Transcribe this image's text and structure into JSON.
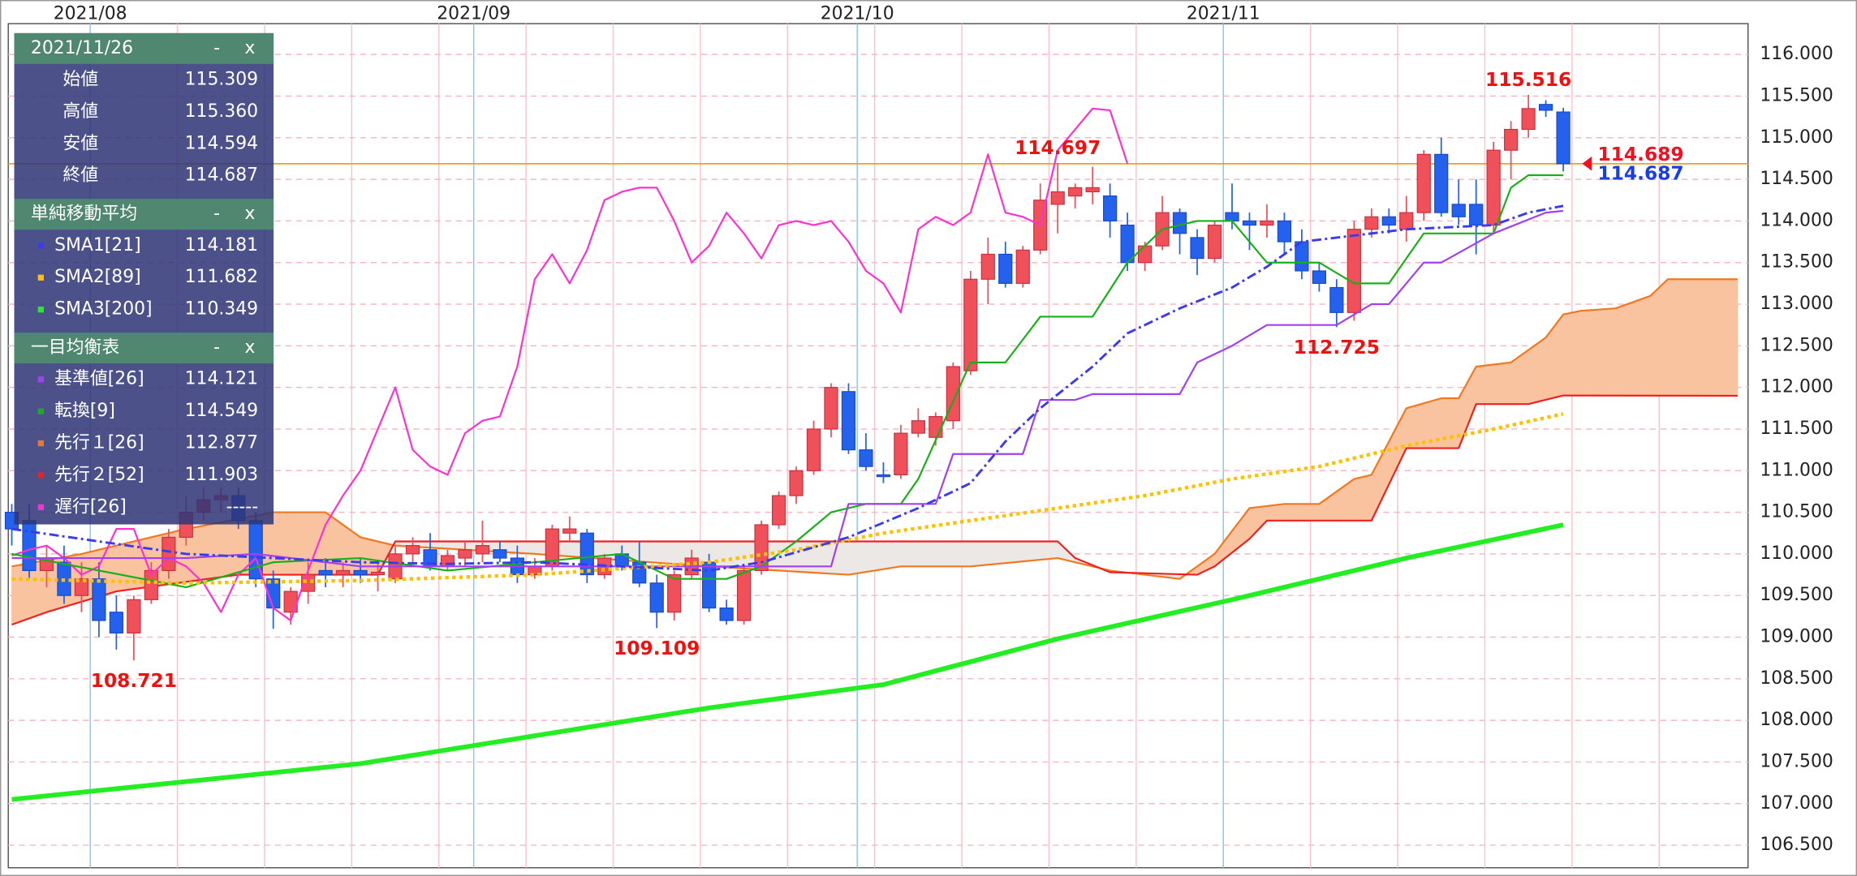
{
  "chart_data": {
    "type": "candlestick",
    "up_color": "#f0505a",
    "down_color": "#2462ee",
    "xlim": [
      -0.2,
      99.6
    ],
    "ylim": [
      106.23,
      116.37
    ],
    "yticks": [
      {
        "value": 106.5,
        "label": "106.500"
      },
      {
        "value": 107,
        "label": "107.000"
      },
      {
        "value": 107.5,
        "label": "107.500"
      },
      {
        "value": 108,
        "label": "108.000"
      },
      {
        "value": 108.5,
        "label": "108.500"
      },
      {
        "value": 109,
        "label": "109.000"
      },
      {
        "value": 109.5,
        "label": "109.500"
      },
      {
        "value": 110,
        "label": "110.000"
      },
      {
        "value": 110.5,
        "label": "110.500"
      },
      {
        "value": 111,
        "label": "111.000"
      },
      {
        "value": 111.5,
        "label": "111.500"
      },
      {
        "value": 112,
        "label": "112.000"
      },
      {
        "value": 112.5,
        "label": "112.500"
      },
      {
        "value": 113,
        "label": "113.000"
      },
      {
        "value": 113.5,
        "label": "113.500"
      },
      {
        "value": 114,
        "label": "114.000"
      },
      {
        "value": 114.5,
        "label": "114.500"
      },
      {
        "value": 115,
        "label": "115.000"
      },
      {
        "value": 115.5,
        "label": "115.500"
      },
      {
        "value": 116,
        "label": "116.000"
      }
    ],
    "xticks": [
      {
        "value": 4.5,
        "label": "2021/08"
      },
      {
        "value": 26.5,
        "label": "2021/09"
      },
      {
        "value": 48.5,
        "label": "2021/10"
      },
      {
        "value": 69.5,
        "label": "2021/11"
      }
    ],
    "xgrid": [
      9.5,
      14.5,
      19.5,
      24.5,
      29.5,
      34.5,
      39.5,
      44.5,
      49.5,
      54.5,
      59.5,
      64.5,
      74.5,
      79.5,
      84.5,
      89.5,
      94.5
    ],
    "grid": true,
    "open": [
      110.5,
      110.4,
      109.8,
      109.9,
      109.5,
      109.7,
      109.3,
      109.05,
      109.45,
      109.8,
      110.2,
      110.5,
      110.65,
      110.7,
      110.4,
      109.7,
      109.3,
      109.55,
      109.8,
      109.75,
      109.8,
      109.75,
      109.7,
      110.0,
      110.05,
      109.85,
      109.95,
      110.0,
      110.05,
      109.95,
      109.75,
      109.85,
      110.25,
      110.25,
      109.75,
      110.0,
      109.9,
      109.65,
      109.3,
      109.75,
      109.9,
      109.35,
      109.2,
      109.8,
      110.35,
      110.7,
      111.0,
      111.5,
      111.95,
      111.25,
      110.95,
      110.95,
      111.45,
      111.4,
      111.6,
      112.2,
      113.3,
      113.6,
      113.25,
      113.65,
      114.2,
      114.3,
      114.35,
      114.3,
      113.95,
      113.5,
      113.7,
      114.1,
      113.8,
      113.55,
      114.1,
      114.0,
      113.95,
      114.0,
      113.75,
      113.4,
      113.2,
      112.9,
      113.9,
      114.05,
      113.9,
      114.1,
      114.8,
      114.2,
      114.2,
      113.95,
      114.85,
      115.1,
      115.4,
      115.309
    ],
    "high": [
      110.6,
      110.6,
      110.1,
      110.1,
      109.9,
      109.9,
      109.5,
      109.5,
      109.9,
      110.3,
      110.7,
      110.8,
      110.8,
      110.8,
      110.5,
      109.8,
      109.6,
      109.9,
      109.95,
      109.9,
      109.95,
      109.9,
      110.1,
      110.2,
      110.25,
      110.05,
      110.15,
      110.4,
      110.15,
      110.1,
      109.95,
      110.35,
      110.45,
      110.3,
      110.0,
      110.1,
      110.15,
      109.75,
      109.8,
      110.05,
      110.0,
      109.45,
      109.85,
      110.4,
      110.75,
      111.05,
      111.6,
      112.05,
      112.05,
      111.45,
      111.1,
      111.55,
      111.75,
      111.7,
      112.3,
      113.4,
      113.8,
      113.75,
      113.7,
      114.45,
      114.697,
      114.45,
      114.65,
      114.45,
      114.1,
      113.75,
      114.3,
      114.15,
      113.9,
      114.0,
      114.45,
      114.1,
      114.2,
      114.1,
      113.9,
      113.5,
      113.3,
      114.0,
      114.15,
      114.15,
      114.3,
      114.85,
      115.0,
      114.5,
      114.5,
      114.95,
      115.2,
      115.516,
      115.45,
      115.36
    ],
    "low": [
      110.1,
      109.7,
      109.6,
      109.4,
      109.3,
      109.0,
      108.85,
      108.721,
      109.4,
      109.7,
      110.1,
      110.4,
      110.5,
      110.3,
      109.6,
      109.1,
      109.15,
      109.4,
      109.6,
      109.6,
      109.65,
      109.55,
      109.65,
      109.9,
      109.8,
      109.8,
      109.85,
      109.9,
      109.9,
      109.65,
      109.7,
      109.8,
      110.15,
      109.65,
      109.7,
      109.8,
      109.6,
      109.109,
      109.2,
      109.7,
      109.3,
      109.15,
      109.15,
      109.75,
      110.3,
      110.6,
      110.95,
      111.4,
      111.2,
      111.0,
      110.85,
      110.9,
      111.4,
      111.3,
      111.5,
      112.15,
      113.0,
      113.2,
      113.2,
      113.6,
      113.85,
      114.15,
      114.2,
      113.8,
      113.4,
      113.4,
      113.65,
      113.6,
      113.35,
      113.5,
      113.9,
      113.65,
      113.8,
      113.6,
      113.3,
      113.15,
      112.725,
      112.8,
      113.8,
      113.85,
      113.75,
      114.0,
      114.05,
      113.95,
      113.6,
      113.85,
      114.5,
      115.0,
      115.25,
      114.594
    ],
    "close": [
      110.3,
      109.8,
      109.95,
      109.5,
      109.7,
      109.2,
      109.05,
      109.45,
      109.8,
      110.2,
      110.5,
      110.65,
      110.7,
      110.4,
      109.7,
      109.35,
      109.55,
      109.75,
      109.75,
      109.8,
      109.75,
      109.78,
      110.0,
      110.1,
      109.85,
      109.98,
      110.05,
      110.1,
      109.95,
      109.75,
      109.85,
      110.3,
      110.3,
      109.75,
      109.95,
      109.85,
      109.65,
      109.3,
      109.75,
      109.95,
      109.35,
      109.2,
      109.8,
      110.35,
      110.7,
      111.0,
      111.5,
      112.0,
      111.25,
      111.05,
      110.95,
      111.45,
      111.6,
      111.65,
      112.25,
      113.3,
      113.6,
      113.25,
      113.65,
      114.25,
      114.35,
      114.4,
      114.4,
      114.0,
      113.5,
      113.7,
      114.1,
      113.85,
      113.55,
      113.95,
      114.0,
      113.95,
      114.0,
      113.75,
      113.4,
      113.25,
      112.9,
      113.9,
      114.05,
      113.95,
      114.1,
      114.8,
      114.1,
      114.05,
      113.95,
      114.85,
      115.1,
      115.35,
      115.33,
      114.687
    ],
    "ohlc": {
      "title": "2021/11/26",
      "labels": [
        "始値",
        "高値",
        "安値",
        "終値"
      ],
      "value_labels": [
        "115.309",
        "115.360",
        "114.594",
        "114.687"
      ]
    },
    "controls": [
      "-",
      "x"
    ],
    "indicators": [
      {
        "title": "単純移動平均",
        "series": [
          {
            "name": "SMA1[21]",
            "legend_value": "114.181",
            "color": "#3a3af0",
            "width": 2,
            "dash": "8 3 2 3",
            "x": [
              0,
              5,
              10,
              15,
              20,
              25,
              30,
              35,
              40,
              43,
              48,
              52,
              55,
              57,
              59,
              62,
              64,
              67,
              70,
              72,
              74,
              76,
              80,
              85,
              87,
              89
            ],
            "values": [
              110.3,
              110.15,
              110.0,
              109.95,
              109.9,
              109.88,
              109.9,
              109.85,
              109.8,
              109.9,
              110.2,
              110.55,
              110.85,
              111.35,
              111.75,
              112.25,
              112.65,
              112.95,
              113.2,
              113.45,
              113.75,
              113.8,
              113.9,
              113.95,
              114.1,
              114.181
            ]
          },
          {
            "name": "SMA2[89]",
            "legend_value": "111.682",
            "color": "#ffc000",
            "width": 3,
            "dash": "3 3",
            "x": [
              0,
              10,
              20,
              30,
              40,
              45,
              50,
              55,
              60,
              65,
              70,
              75,
              80,
              85,
              89
            ],
            "values": [
              109.7,
              109.65,
              109.68,
              109.75,
              109.9,
              110.05,
              110.25,
              110.4,
              110.55,
              110.7,
              110.9,
              111.05,
              111.3,
              111.5,
              111.682
            ]
          },
          {
            "name": "SMA3[200]",
            "legend_value": "110.349",
            "color": "#22ee22",
            "width": 4,
            "x": [
              0,
              20,
              40,
              50,
              60,
              70,
              80,
              89
            ],
            "values": [
              107.05,
              107.48,
              108.15,
              108.43,
              108.98,
              109.45,
              109.95,
              110.349
            ]
          }
        ]
      },
      {
        "title": "一目均衡表",
        "series": [
          {
            "name": "基準値[26]",
            "legend_value": "114.121",
            "color": "#a040f0",
            "width": 1.5,
            "x": [
              0,
              10,
              14,
              20,
              30,
              43,
              47,
              48,
              53,
              54,
              55,
              58,
              59,
              61,
              62,
              67,
              68,
              70,
              72,
              76,
              78,
              79,
              81,
              82,
              85,
              88,
              89
            ],
            "values": [
              109.95,
              109.95,
              110.0,
              109.85,
              109.85,
              109.85,
              109.85,
              110.6,
              110.6,
              111.2,
              111.2,
              111.2,
              111.85,
              111.85,
              111.92,
              111.92,
              112.3,
              112.5,
              112.75,
              112.75,
              113.0,
              113.0,
              113.5,
              113.5,
              113.85,
              114.1,
              114.121
            ]
          },
          {
            "name": "転換[9]",
            "legend_value": "114.549",
            "color": "#18b018",
            "width": 1.5,
            "x": [
              0,
              5,
              10,
              15,
              20,
              25,
              30,
              35,
              38,
              41,
              43,
              45,
              47,
              49,
              51,
              52,
              55,
              57,
              59,
              62,
              64,
              66,
              68,
              70,
              72,
              75,
              77,
              79,
              81,
              85,
              86,
              87,
              89
            ],
            "values": [
              110.0,
              109.8,
              109.6,
              109.9,
              109.95,
              109.8,
              109.9,
              110.0,
              109.7,
              109.7,
              109.85,
              110.15,
              110.5,
              110.6,
              110.6,
              110.9,
              112.3,
              112.3,
              112.85,
              112.85,
              113.5,
              113.9,
              114.0,
              114.0,
              113.5,
              113.5,
              113.25,
              113.25,
              113.85,
              113.85,
              114.4,
              114.55,
              114.549
            ]
          },
          {
            "name": "先行１[26]",
            "legend_value": "112.877",
            "color": "#f07820",
            "width": 1.5,
            "fill": true,
            "x": [
              0,
              4,
              10,
              15,
              18,
              20,
              22,
              30,
              40,
              48,
              51,
              55,
              60,
              63,
              67,
              69,
              71,
              73,
              75,
              77,
              78,
              80,
              82,
              83,
              84,
              86,
              88,
              89,
              90,
              92,
              94,
              95,
              99
            ],
            "values": [
              109.85,
              110.0,
              110.3,
              110.5,
              110.5,
              110.2,
              110.1,
              110.0,
              109.85,
              109.75,
              109.85,
              109.85,
              109.95,
              109.8,
              109.7,
              110.0,
              110.55,
              110.6,
              110.6,
              110.9,
              110.95,
              111.75,
              111.87,
              111.87,
              112.25,
              112.3,
              112.6,
              112.877,
              112.92,
              112.95,
              113.1,
              113.3,
              113.3
            ]
          },
          {
            "name": "先行２[52]",
            "legend_value": "111.903",
            "color": "#f02020",
            "width": 1.5,
            "fill": true,
            "x": [
              0,
              2,
              6,
              13,
              21,
              22,
              60,
              61,
              63,
              68,
              69,
              71,
              72,
              78,
              80,
              83,
              84,
              87,
              89,
              99
            ],
            "values": [
              109.15,
              109.3,
              109.55,
              109.75,
              109.75,
              110.15,
              110.15,
              109.95,
              109.78,
              109.75,
              109.85,
              110.18,
              110.4,
              110.4,
              111.27,
              111.27,
              111.8,
              111.8,
              111.903,
              111.9
            ]
          },
          {
            "name": "遅行[26]",
            "legend_value": "-----",
            "color": "#ff30d0",
            "width": 1.5,
            "x": [
              0,
              1,
              2,
              3,
              4,
              5,
              6,
              7,
              8,
              9,
              10,
              11,
              12,
              13,
              14,
              15,
              16,
              17,
              18,
              19,
              20,
              21,
              22,
              23,
              24,
              25,
              26,
              27,
              28,
              29,
              30,
              31,
              32,
              33,
              34,
              35,
              36,
              37,
              38,
              39,
              40,
              41,
              42,
              43,
              44,
              45,
              46,
              47,
              48,
              49,
              50,
              51,
              52,
              53,
              54,
              55,
              56,
              57,
              58,
              59,
              60,
              61,
              62,
              63,
              64
            ],
            "values": [
              109.98,
              110.05,
              110.1,
              109.95,
              109.75,
              109.85,
              110.3,
              110.3,
              109.75,
              109.95,
              109.85,
              109.65,
              109.3,
              109.75,
              109.95,
              109.35,
              109.2,
              109.8,
              110.35,
              110.7,
              111.0,
              111.5,
              112.0,
              111.25,
              111.05,
              110.95,
              111.45,
              111.6,
              111.65,
              112.25,
              113.3,
              113.6,
              113.25,
              113.65,
              114.25,
              114.35,
              114.4,
              114.4,
              114.0,
              113.5,
              113.7,
              114.1,
              113.85,
              113.55,
              113.95,
              114.0,
              113.95,
              114.0,
              113.75,
              113.4,
              113.25,
              112.9,
              113.9,
              114.05,
              113.95,
              114.1,
              114.8,
              114.1,
              114.05,
              113.95,
              114.85,
              115.1,
              115.35,
              115.33,
              114.687
            ]
          }
        ]
      }
    ],
    "cloud_colors": [
      "#f9c3a0",
      "#ece8e6"
    ],
    "price_line": {
      "value": 114.687,
      "color": "#f0a020"
    },
    "price_tags": [
      {
        "value": 114.689,
        "label": "114.689",
        "color": "#f01020"
      },
      {
        "value": 114.687,
        "label": "114.687",
        "color": "#1a3de8"
      }
    ],
    "annotations": [
      {
        "x": 87,
        "value": 115.516,
        "label": "115.516"
      },
      {
        "x": 60,
        "value": 114.697,
        "label": "114.697"
      },
      {
        "x": 76,
        "value": 112.725,
        "label": "112.725"
      },
      {
        "x": 37,
        "value": 109.109,
        "label": "109.109"
      },
      {
        "x": 7,
        "value": 108.721,
        "label": "108.721"
      }
    ]
  }
}
